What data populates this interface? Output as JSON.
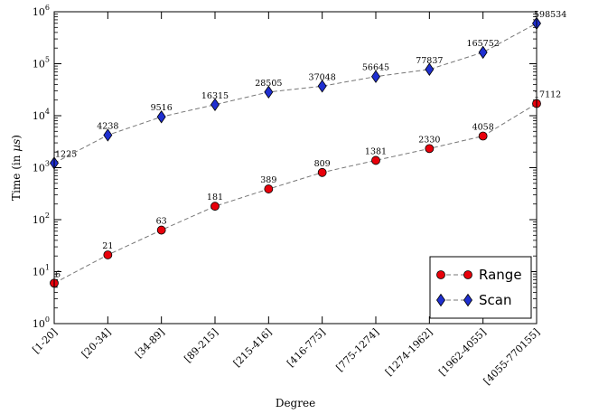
{
  "chart_data": {
    "type": "line",
    "scale": "log",
    "xlabel": "Degree",
    "ylabel": "Time (in µs)",
    "categories": [
      "[1-20]",
      "[20-34]",
      "[34-89]",
      "[89-215]",
      "[215-416]",
      "[416-775]",
      "[775-1274]",
      "[1274-1962]",
      "[1962-4055]",
      "[4055-770155]"
    ],
    "ylim": [
      1,
      1000000
    ],
    "yticks": [
      1,
      10,
      100,
      1000,
      10000,
      100000,
      1000000
    ],
    "ytick_labels": [
      {
        "base": "10",
        "exp": "0"
      },
      {
        "base": "10",
        "exp": "1"
      },
      {
        "base": "10",
        "exp": "2"
      },
      {
        "base": "10",
        "exp": "3"
      },
      {
        "base": "10",
        "exp": "4"
      },
      {
        "base": "10",
        "exp": "5"
      },
      {
        "base": "10",
        "exp": "6"
      }
    ],
    "grid": false,
    "legend": "bottom-right",
    "series": [
      {
        "name": "Range",
        "marker": "circle",
        "color": "#e8000b",
        "values": [
          6,
          21,
          63,
          181,
          389,
          809,
          1381,
          2330,
          4058,
          17112
        ]
      },
      {
        "name": "Scan",
        "marker": "diamond",
        "color": "#1f2fd0",
        "values": [
          1225,
          4238,
          9516,
          16315,
          28505,
          37048,
          56645,
          77837,
          165752,
          598534
        ]
      }
    ]
  }
}
